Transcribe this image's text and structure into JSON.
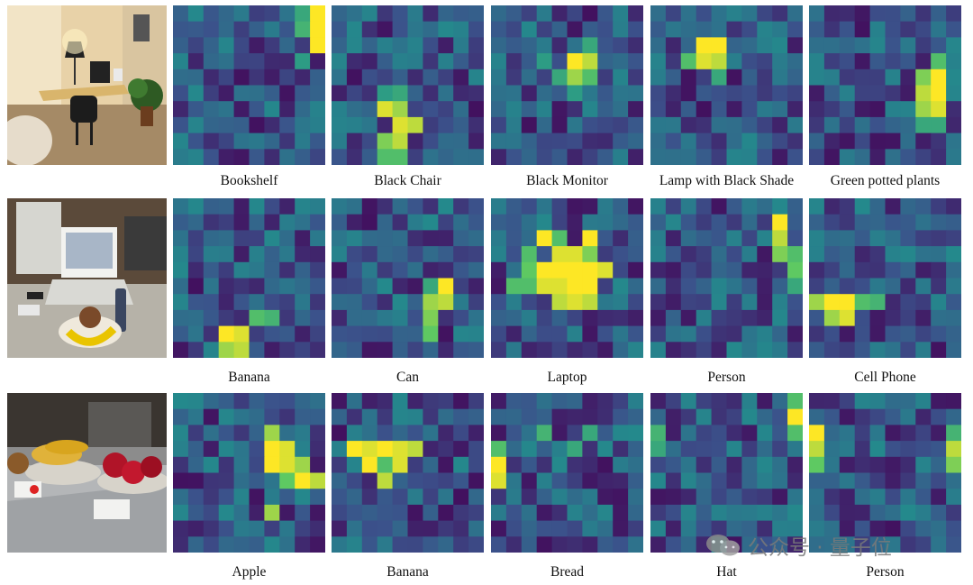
{
  "colormap": [
    "#440154",
    "#3b528b",
    "#21918c",
    "#5ec962",
    "#fde725"
  ],
  "rows": [
    {
      "image": "office-desk-scene",
      "items": [
        {
          "label": "Bookshelf",
          "hot": [
            [
              0,
              9,
              1.0
            ],
            [
              1,
              9,
              1.0
            ],
            [
              2,
              9,
              1.0
            ],
            [
              0,
              8,
              0.6
            ],
            [
              1,
              8,
              0.65
            ],
            [
              3,
              8,
              0.55
            ]
          ]
        },
        {
          "label": "Black Chair",
          "hot": [
            [
              6,
              3,
              0.95
            ],
            [
              6,
              4,
              0.85
            ],
            [
              7,
              4,
              0.95
            ],
            [
              7,
              5,
              0.9
            ],
            [
              8,
              3,
              0.8
            ],
            [
              8,
              4,
              0.9
            ],
            [
              9,
              3,
              0.7
            ],
            [
              9,
              4,
              0.7
            ],
            [
              5,
              4,
              0.6
            ],
            [
              5,
              3,
              0.55
            ]
          ]
        },
        {
          "label": "Black Monitor",
          "hot": [
            [
              3,
              5,
              1.0
            ],
            [
              3,
              6,
              0.9
            ],
            [
              4,
              5,
              0.85
            ],
            [
              4,
              6,
              0.7
            ],
            [
              2,
              6,
              0.6
            ],
            [
              4,
              4,
              0.6
            ],
            [
              3,
              3,
              0.55
            ],
            [
              5,
              5,
              0.55
            ]
          ]
        },
        {
          "label": "Lamp with Black Shade",
          "hot": [
            [
              2,
              3,
              1.0
            ],
            [
              2,
              4,
              1.0
            ],
            [
              3,
              3,
              0.95
            ],
            [
              3,
              4,
              0.9
            ],
            [
              3,
              2,
              0.7
            ],
            [
              4,
              4,
              0.6
            ]
          ]
        },
        {
          "label": "Green potted plants",
          "hot": [
            [
              4,
              8,
              1.0
            ],
            [
              5,
              8,
              1.0
            ],
            [
              6,
              8,
              0.95
            ],
            [
              5,
              7,
              0.9
            ],
            [
              6,
              7,
              0.85
            ],
            [
              4,
              7,
              0.8
            ],
            [
              3,
              8,
              0.7
            ],
            [
              7,
              7,
              0.6
            ],
            [
              7,
              8,
              0.6
            ]
          ]
        }
      ]
    },
    {
      "image": "laptop-table-scene",
      "items": [
        {
          "label": "Banana",
          "hot": [
            [
              8,
              3,
              1.0
            ],
            [
              8,
              4,
              0.95
            ],
            [
              9,
              4,
              0.9
            ],
            [
              9,
              3,
              0.85
            ],
            [
              7,
              5,
              0.7
            ],
            [
              7,
              6,
              0.65
            ]
          ]
        },
        {
          "label": "Can",
          "hot": [
            [
              5,
              7,
              1.0
            ],
            [
              6,
              7,
              0.9
            ],
            [
              6,
              6,
              0.85
            ],
            [
              7,
              6,
              0.8
            ],
            [
              8,
              6,
              0.75
            ],
            [
              5,
              6,
              0.6
            ]
          ]
        },
        {
          "label": "Laptop",
          "hot": [
            [
              2,
              3,
              1.0
            ],
            [
              2,
              6,
              1.0
            ],
            [
              3,
              4,
              0.95
            ],
            [
              3,
              5,
              0.95
            ],
            [
              4,
              3,
              1.0
            ],
            [
              4,
              4,
              1.0
            ],
            [
              4,
              5,
              1.0
            ],
            [
              4,
              6,
              1.0
            ],
            [
              4,
              7,
              0.95
            ],
            [
              5,
              3,
              0.95
            ],
            [
              5,
              4,
              0.95
            ],
            [
              5,
              5,
              1.0
            ],
            [
              5,
              6,
              1.0
            ],
            [
              6,
              4,
              0.9
            ],
            [
              6,
              5,
              0.95
            ],
            [
              6,
              6,
              0.9
            ],
            [
              3,
              2,
              0.7
            ],
            [
              5,
              1,
              0.7
            ],
            [
              5,
              2,
              0.7
            ],
            [
              3,
              6,
              0.8
            ],
            [
              2,
              4,
              0.7
            ],
            [
              4,
              2,
              0.75
            ]
          ]
        },
        {
          "label": "Person",
          "hot": [
            [
              1,
              8,
              1.0
            ],
            [
              2,
              8,
              0.9
            ],
            [
              3,
              8,
              0.8
            ],
            [
              4,
              9,
              0.75
            ],
            [
              3,
              9,
              0.7
            ],
            [
              5,
              9,
              0.6
            ]
          ]
        },
        {
          "label": "Cell Phone",
          "hot": [
            [
              6,
              1,
              1.0
            ],
            [
              6,
              2,
              1.0
            ],
            [
              7,
              2,
              0.95
            ],
            [
              6,
              0,
              0.85
            ],
            [
              7,
              1,
              0.85
            ],
            [
              6,
              3,
              0.7
            ],
            [
              6,
              4,
              0.65
            ]
          ]
        }
      ]
    },
    {
      "image": "fruit-counter-scene",
      "items": [
        {
          "label": "Apple",
          "hot": [
            [
              3,
              6,
              1.0
            ],
            [
              3,
              7,
              0.95
            ],
            [
              4,
              6,
              1.0
            ],
            [
              4,
              7,
              0.95
            ],
            [
              5,
              8,
              1.0
            ],
            [
              5,
              9,
              0.9
            ],
            [
              4,
              8,
              0.85
            ],
            [
              2,
              6,
              0.85
            ],
            [
              7,
              6,
              0.85
            ],
            [
              5,
              7,
              0.75
            ]
          ]
        },
        {
          "label": "Banana",
          "hot": [
            [
              3,
              1,
              1.0
            ],
            [
              3,
              2,
              0.95
            ],
            [
              3,
              3,
              1.0
            ],
            [
              3,
              4,
              0.95
            ],
            [
              3,
              5,
              0.9
            ],
            [
              4,
              2,
              1.0
            ],
            [
              4,
              4,
              0.95
            ],
            [
              5,
              3,
              0.9
            ],
            [
              4,
              3,
              0.7
            ]
          ]
        },
        {
          "label": "Bread",
          "hot": [
            [
              4,
              0,
              1.0
            ],
            [
              5,
              0,
              0.95
            ],
            [
              3,
              0,
              0.7
            ],
            [
              2,
              3,
              0.65
            ],
            [
              3,
              5,
              0.6
            ],
            [
              2,
              6,
              0.6
            ]
          ]
        },
        {
          "label": "Hat",
          "hot": [
            [
              1,
              9,
              1.0
            ],
            [
              0,
              9,
              0.7
            ],
            [
              2,
              9,
              0.7
            ],
            [
              2,
              0,
              0.65
            ],
            [
              3,
              0,
              0.6
            ]
          ]
        },
        {
          "label": "Person",
          "hot": [
            [
              2,
              0,
              1.0
            ],
            [
              3,
              0,
              0.9
            ],
            [
              4,
              0,
              0.75
            ],
            [
              3,
              9,
              0.9
            ],
            [
              4,
              9,
              0.8
            ],
            [
              2,
              9,
              0.65
            ]
          ]
        }
      ]
    }
  ],
  "watermark": {
    "text": "公众号 · 量子位",
    "icon": "wechat-icon"
  }
}
